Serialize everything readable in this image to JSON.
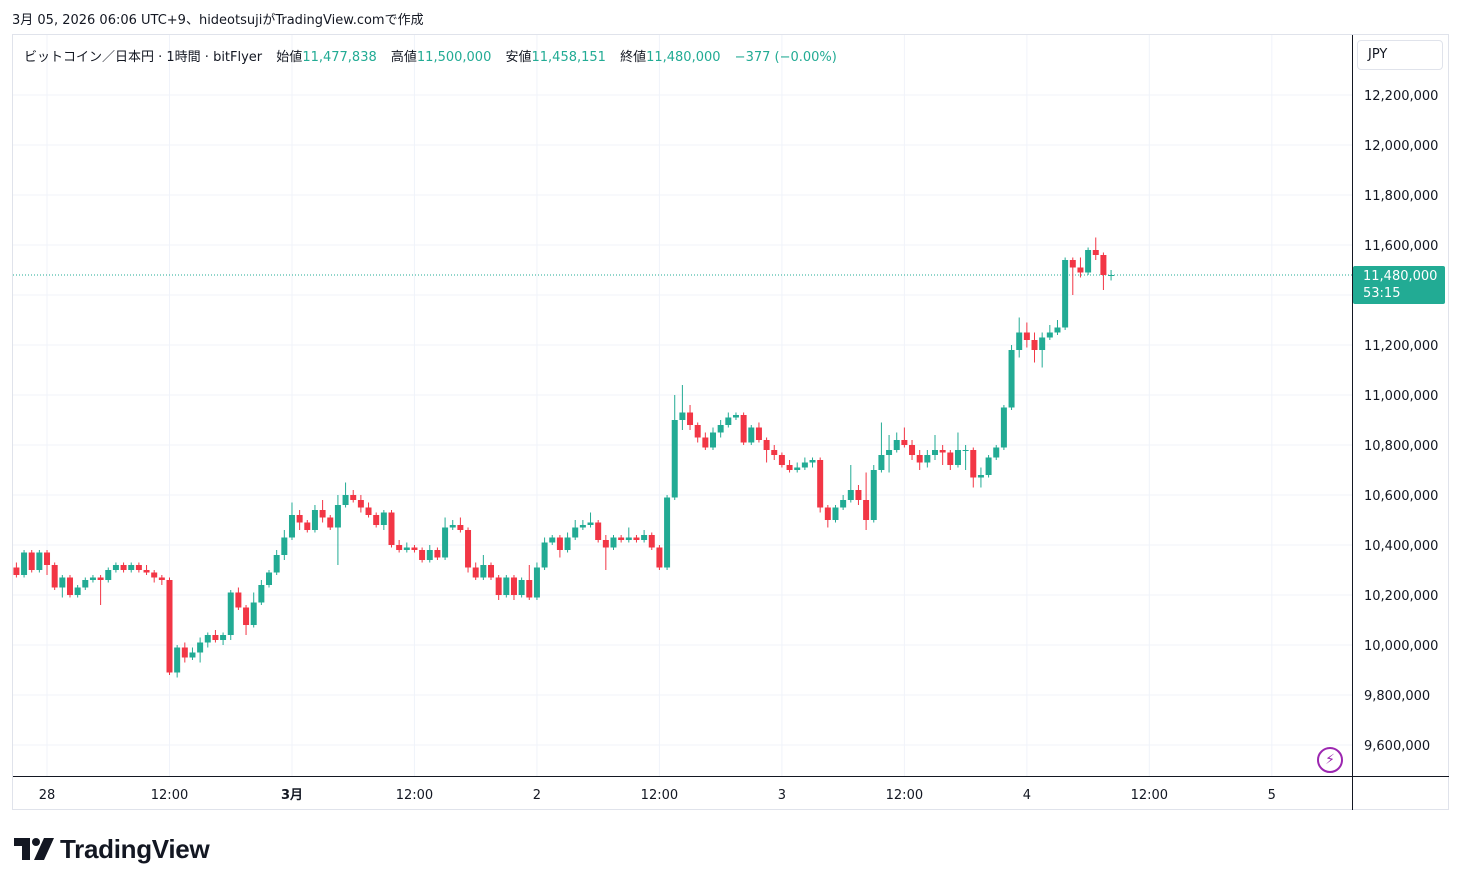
{
  "header": {
    "snapshot_line": "3月 05, 2026 06:06 UTC+9、hideotsujiがTradingView.comで作成"
  },
  "legend": {
    "symbol": "ビットコイン／日本円 · 1時間 · bitFlyer",
    "open_label": "始値",
    "open_value": "11,477,838",
    "high_label": "高値",
    "high_value": "11,500,000",
    "low_label": "安値",
    "low_value": "11,458,151",
    "close_label": "終値",
    "close_value": "11,480,000",
    "change": "−377 (−0.00%)"
  },
  "price_axis": {
    "currency": "JPY",
    "last_price": "11,480,000",
    "countdown": "53:15"
  },
  "brand": {
    "logo_text": "TradingView"
  },
  "colors": {
    "up": "#22ab94",
    "down": "#f23645",
    "grid": "#f0f3fa",
    "accent_purple": "#9c27b0"
  },
  "chart_data": {
    "type": "candlestick",
    "interval": "1h",
    "y_axis": {
      "ylim": [
        9500000,
        12300000
      ],
      "ticks": [
        {
          "value": 12200000,
          "label": "12,200,000"
        },
        {
          "value": 12000000,
          "label": "12,000,000"
        },
        {
          "value": 11800000,
          "label": "11,800,000"
        },
        {
          "value": 11600000,
          "label": "11,600,000"
        },
        {
          "value": 11200000,
          "label": "11,200,000"
        },
        {
          "value": 11000000,
          "label": "11,000,000"
        },
        {
          "value": 10800000,
          "label": "10,800,000"
        },
        {
          "value": 10600000,
          "label": "10,600,000"
        },
        {
          "value": 10400000,
          "label": "10,400,000"
        },
        {
          "value": 10200000,
          "label": "10,200,000"
        },
        {
          "value": 10000000,
          "label": "10,000,000"
        },
        {
          "value": 9800000,
          "label": "9,800,000"
        },
        {
          "value": 9600000,
          "label": "9,600,000"
        }
      ]
    },
    "x_axis": {
      "ticks": [
        {
          "index": 4,
          "label": "28",
          "bold": false
        },
        {
          "index": 20,
          "label": "12:00",
          "bold": false
        },
        {
          "index": 36,
          "label": "3月",
          "bold": true
        },
        {
          "index": 52,
          "label": "12:00",
          "bold": false
        },
        {
          "index": 68,
          "label": "2",
          "bold": false
        },
        {
          "index": 84,
          "label": "12:00",
          "bold": false
        },
        {
          "index": 100,
          "label": "3",
          "bold": false
        },
        {
          "index": 116,
          "label": "12:00",
          "bold": false
        },
        {
          "index": 132,
          "label": "4",
          "bold": false
        },
        {
          "index": 148,
          "label": "12:00",
          "bold": false
        },
        {
          "index": 164,
          "label": "5",
          "bold": false
        }
      ]
    },
    "last_price": 11480000,
    "candles": [
      [
        10310000,
        10280000,
        10330000,
        10270000
      ],
      [
        10280000,
        10370000,
        10380000,
        10270000
      ],
      [
        10370000,
        10300000,
        10380000,
        10290000
      ],
      [
        10300000,
        10370000,
        10380000,
        10290000
      ],
      [
        10370000,
        10320000,
        10380000,
        10280000
      ],
      [
        10320000,
        10230000,
        10330000,
        10220000
      ],
      [
        10230000,
        10270000,
        10280000,
        10190000
      ],
      [
        10270000,
        10200000,
        10280000,
        10190000
      ],
      [
        10200000,
        10230000,
        10240000,
        10190000
      ],
      [
        10230000,
        10260000,
        10270000,
        10220000
      ],
      [
        10260000,
        10270000,
        10280000,
        10250000
      ],
      [
        10270000,
        10260000,
        10280000,
        10160000
      ],
      [
        10260000,
        10300000,
        10310000,
        10250000
      ],
      [
        10300000,
        10320000,
        10330000,
        10290000
      ],
      [
        10320000,
        10300000,
        10330000,
        10290000
      ],
      [
        10300000,
        10320000,
        10330000,
        10290000
      ],
      [
        10320000,
        10300000,
        10330000,
        10290000
      ],
      [
        10300000,
        10290000,
        10320000,
        10280000
      ],
      [
        10290000,
        10270000,
        10300000,
        10250000
      ],
      [
        10270000,
        10260000,
        10280000,
        10240000
      ],
      [
        10260000,
        9890000,
        10270000,
        9880000
      ],
      [
        9890000,
        9990000,
        10000000,
        9870000
      ],
      [
        9990000,
        9950000,
        10010000,
        9930000
      ],
      [
        9950000,
        9970000,
        9990000,
        9940000
      ],
      [
        9970000,
        10010000,
        10030000,
        9930000
      ],
      [
        10010000,
        10040000,
        10050000,
        9990000
      ],
      [
        10040000,
        10020000,
        10060000,
        10010000
      ],
      [
        10020000,
        10040000,
        10050000,
        10000000
      ],
      [
        10040000,
        10210000,
        10220000,
        10020000
      ],
      [
        10210000,
        10150000,
        10230000,
        10140000
      ],
      [
        10150000,
        10080000,
        10160000,
        10040000
      ],
      [
        10080000,
        10170000,
        10210000,
        10070000
      ],
      [
        10170000,
        10240000,
        10260000,
        10160000
      ],
      [
        10240000,
        10290000,
        10300000,
        10230000
      ],
      [
        10290000,
        10360000,
        10380000,
        10280000
      ],
      [
        10360000,
        10430000,
        10460000,
        10340000
      ],
      [
        10430000,
        10520000,
        10570000,
        10420000
      ],
      [
        10520000,
        10490000,
        10540000,
        10460000
      ],
      [
        10490000,
        10460000,
        10500000,
        10450000
      ],
      [
        10460000,
        10540000,
        10560000,
        10450000
      ],
      [
        10540000,
        10510000,
        10580000,
        10490000
      ],
      [
        10510000,
        10470000,
        10520000,
        10460000
      ],
      [
        10470000,
        10560000,
        10600000,
        10320000
      ],
      [
        10560000,
        10600000,
        10650000,
        10550000
      ],
      [
        10600000,
        10580000,
        10620000,
        10570000
      ],
      [
        10580000,
        10550000,
        10600000,
        10530000
      ],
      [
        10550000,
        10520000,
        10570000,
        10510000
      ],
      [
        10520000,
        10480000,
        10530000,
        10470000
      ],
      [
        10480000,
        10530000,
        10540000,
        10460000
      ],
      [
        10530000,
        10400000,
        10540000,
        10390000
      ],
      [
        10400000,
        10380000,
        10420000,
        10370000
      ],
      [
        10380000,
        10390000,
        10410000,
        10370000
      ],
      [
        10390000,
        10380000,
        10400000,
        10370000
      ],
      [
        10380000,
        10340000,
        10390000,
        10330000
      ],
      [
        10340000,
        10380000,
        10400000,
        10330000
      ],
      [
        10380000,
        10350000,
        10390000,
        10340000
      ],
      [
        10350000,
        10470000,
        10510000,
        10340000
      ],
      [
        10470000,
        10480000,
        10500000,
        10460000
      ],
      [
        10480000,
        10460000,
        10510000,
        10450000
      ],
      [
        10460000,
        10310000,
        10470000,
        10290000
      ],
      [
        10310000,
        10270000,
        10330000,
        10260000
      ],
      [
        10270000,
        10320000,
        10360000,
        10260000
      ],
      [
        10320000,
        10270000,
        10330000,
        10260000
      ],
      [
        10270000,
        10200000,
        10280000,
        10180000
      ],
      [
        10200000,
        10270000,
        10280000,
        10190000
      ],
      [
        10270000,
        10200000,
        10280000,
        10180000
      ],
      [
        10200000,
        10260000,
        10270000,
        10190000
      ],
      [
        10260000,
        10190000,
        10320000,
        10180000
      ],
      [
        10190000,
        10310000,
        10330000,
        10180000
      ],
      [
        10310000,
        10410000,
        10430000,
        10300000
      ],
      [
        10410000,
        10430000,
        10440000,
        10400000
      ],
      [
        10430000,
        10380000,
        10440000,
        10350000
      ],
      [
        10380000,
        10430000,
        10450000,
        10370000
      ],
      [
        10430000,
        10470000,
        10500000,
        10420000
      ],
      [
        10470000,
        10480000,
        10500000,
        10460000
      ],
      [
        10480000,
        10490000,
        10530000,
        10470000
      ],
      [
        10490000,
        10420000,
        10500000,
        10410000
      ],
      [
        10420000,
        10390000,
        10440000,
        10300000
      ],
      [
        10390000,
        10430000,
        10440000,
        10380000
      ],
      [
        10430000,
        10420000,
        10440000,
        10410000
      ],
      [
        10420000,
        10430000,
        10470000,
        10410000
      ],
      [
        10430000,
        10420000,
        10440000,
        10410000
      ],
      [
        10420000,
        10440000,
        10460000,
        10410000
      ],
      [
        10440000,
        10390000,
        10450000,
        10380000
      ],
      [
        10390000,
        10310000,
        10400000,
        10300000
      ],
      [
        10310000,
        10590000,
        10600000,
        10300000
      ],
      [
        10590000,
        10900000,
        11000000,
        10580000
      ],
      [
        10900000,
        10930000,
        11040000,
        10860000
      ],
      [
        10930000,
        10880000,
        10960000,
        10860000
      ],
      [
        10880000,
        10830000,
        10890000,
        10810000
      ],
      [
        10830000,
        10790000,
        10850000,
        10780000
      ],
      [
        10790000,
        10850000,
        10870000,
        10780000
      ],
      [
        10850000,
        10880000,
        10900000,
        10830000
      ],
      [
        10880000,
        10910000,
        10930000,
        10870000
      ],
      [
        10910000,
        10920000,
        10930000,
        10900000
      ],
      [
        10920000,
        10810000,
        10930000,
        10800000
      ],
      [
        10810000,
        10870000,
        10880000,
        10800000
      ],
      [
        10870000,
        10820000,
        10890000,
        10810000
      ],
      [
        10820000,
        10780000,
        10830000,
        10730000
      ],
      [
        10780000,
        10760000,
        10800000,
        10740000
      ],
      [
        10760000,
        10720000,
        10770000,
        10710000
      ],
      [
        10720000,
        10700000,
        10740000,
        10690000
      ],
      [
        10700000,
        10710000,
        10730000,
        10690000
      ],
      [
        10710000,
        10730000,
        10750000,
        10700000
      ],
      [
        10730000,
        10740000,
        10750000,
        10710000
      ],
      [
        10740000,
        10550000,
        10750000,
        10530000
      ],
      [
        10550000,
        10500000,
        10560000,
        10470000
      ],
      [
        10500000,
        10550000,
        10560000,
        10490000
      ],
      [
        10550000,
        10580000,
        10600000,
        10540000
      ],
      [
        10580000,
        10620000,
        10720000,
        10570000
      ],
      [
        10620000,
        10580000,
        10640000,
        10560000
      ],
      [
        10580000,
        10500000,
        10690000,
        10460000
      ],
      [
        10500000,
        10700000,
        10720000,
        10490000
      ],
      [
        10700000,
        10760000,
        10890000,
        10690000
      ],
      [
        10760000,
        10780000,
        10840000,
        10690000
      ],
      [
        10780000,
        10820000,
        10850000,
        10770000
      ],
      [
        10820000,
        10800000,
        10870000,
        10790000
      ],
      [
        10800000,
        10760000,
        10820000,
        10740000
      ],
      [
        10760000,
        10730000,
        10780000,
        10700000
      ],
      [
        10730000,
        10760000,
        10780000,
        10710000
      ],
      [
        10760000,
        10780000,
        10840000,
        10740000
      ],
      [
        10780000,
        10770000,
        10800000,
        10720000
      ],
      [
        10770000,
        10720000,
        10780000,
        10700000
      ],
      [
        10720000,
        10780000,
        10850000,
        10710000
      ],
      [
        10780000,
        10780000,
        10800000,
        10700000
      ],
      [
        10780000,
        10670000,
        10790000,
        10630000
      ],
      [
        10670000,
        10680000,
        10710000,
        10630000
      ],
      [
        10680000,
        10750000,
        10760000,
        10670000
      ],
      [
        10750000,
        10790000,
        10800000,
        10740000
      ],
      [
        10790000,
        10950000,
        10960000,
        10780000
      ],
      [
        10950000,
        11180000,
        11200000,
        10940000
      ],
      [
        11180000,
        11250000,
        11310000,
        11150000
      ],
      [
        11250000,
        11220000,
        11290000,
        11190000
      ],
      [
        11220000,
        11180000,
        11250000,
        11130000
      ],
      [
        11180000,
        11230000,
        11250000,
        11110000
      ],
      [
        11230000,
        11250000,
        11280000,
        11220000
      ],
      [
        11250000,
        11270000,
        11300000,
        11240000
      ],
      [
        11270000,
        11540000,
        11550000,
        11260000
      ],
      [
        11540000,
        11510000,
        11550000,
        11400000
      ],
      [
        11510000,
        11490000,
        11550000,
        11470000
      ],
      [
        11490000,
        11580000,
        11590000,
        11480000
      ],
      [
        11580000,
        11560000,
        11630000,
        11540000
      ],
      [
        11560000,
        11480000,
        11570000,
        11420000
      ],
      [
        11477838,
        11480000,
        11500000,
        11458151
      ]
    ]
  }
}
